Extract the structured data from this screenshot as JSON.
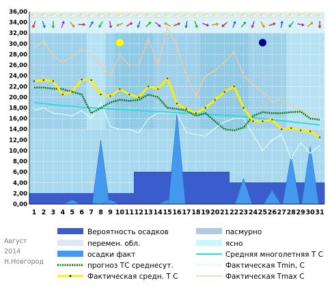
{
  "chart_data": {
    "type": "line",
    "title": "",
    "xlabel": "",
    "ylabel": "",
    "ylim": [
      0,
      36
    ],
    "y_ticks": [
      "0,00",
      "2,00",
      "4,00",
      "6,00",
      "8,00",
      "10,00",
      "12,00",
      "14,00",
      "16,00",
      "18,00",
      "20,00",
      "22,00",
      "24,00",
      "26,00",
      "28,00",
      "30,00",
      "32,00",
      "34,00",
      "36,00"
    ],
    "x": [
      1,
      2,
      3,
      4,
      5,
      6,
      7,
      8,
      9,
      10,
      11,
      12,
      13,
      14,
      15,
      16,
      17,
      18,
      19,
      20,
      21,
      22,
      23,
      24,
      25,
      26,
      27,
      28,
      29,
      30,
      31
    ],
    "grid": true,
    "legend_position": "bottom",
    "side_note": {
      "month": "Август",
      "year": "2014",
      "city": "Н.Новгород"
    },
    "colors": {
      "sky_light": "#d8f2fb",
      "sky_mid": "#a9d9ee",
      "sky_dark": "#88c4e0",
      "precip_probability": "#3a5ccc",
      "precip_actual": "#4499ee",
      "norm": "#22dddd",
      "forecast": "#117711",
      "actual_mean": "#ffee00",
      "tmin": "#d8f8f8",
      "tmax": "#f8c8a0",
      "sun": "#ffff00",
      "moon": "#000088"
    },
    "moon_phases": [
      {
        "day": 10,
        "phase": "full-moon"
      },
      {
        "day": 25,
        "phase": "new-moon"
      }
    ],
    "icon_row": {
      "clouds": "partly-cloudy-icons",
      "wind": "wind-direction-arrows"
    },
    "series": [
      {
        "name": "Вероятность осадков",
        "kind": "step-area",
        "values": [
          2,
          2,
          2,
          2,
          2,
          2,
          2,
          2,
          2,
          2,
          2,
          6,
          6,
          6,
          6,
          6,
          6,
          6,
          6,
          6,
          6,
          4,
          4,
          4,
          4,
          4,
          4,
          4,
          4,
          4,
          4
        ]
      },
      {
        "name": "Фактическая Tmax C",
        "values": [
          29.3,
          30.5,
          27.7,
          26.5,
          27.5,
          29.0,
          28.0,
          26.0,
          24.0,
          27.8,
          26.0,
          26.0,
          31.0,
          26.0,
          33.0,
          29.5,
          24.0,
          20.2,
          24.0,
          25.0,
          26.5,
          28.5,
          24.0,
          22.3,
          21.0,
          19.2,
          19.5,
          18.6,
          17.5,
          17.0,
          17.0
        ]
      },
      {
        "name": "Фактическая Tmin, C",
        "values": [
          17.5,
          18.0,
          17.0,
          16.8,
          16.5,
          17.5,
          16.0,
          19.0,
          14.5,
          14.0,
          14.0,
          13.3,
          16.0,
          17.0,
          17.0,
          17.0,
          13.4,
          13.0,
          12.7,
          14.2,
          15.4,
          16.0,
          16.0,
          13.0,
          10.0,
          12.0,
          13.0,
          8.5,
          11.5,
          9.5,
          11.0
        ]
      },
      {
        "name": "Средняя многолетняя Т С",
        "values": [
          19.0,
          18.8,
          18.6,
          18.4,
          18.3,
          18.1,
          18.0,
          17.9,
          17.8,
          17.7,
          17.6,
          17.5,
          17.4,
          17.3,
          17.2,
          17.1,
          17.0,
          16.9,
          16.8,
          16.7,
          16.6,
          16.5,
          16.4,
          16.2,
          16.0,
          15.8,
          15.6,
          15.4,
          15.2,
          15.0,
          14.8
        ]
      },
      {
        "name": "прогноз ТС среднесут.",
        "values": [
          21.8,
          21.8,
          21.6,
          21.5,
          21.0,
          20.5,
          17.0,
          18.0,
          19.0,
          19.5,
          19.3,
          19.5,
          20.5,
          20.0,
          18.0,
          17.8,
          17.5,
          16.5,
          17.0,
          15.5,
          14.0,
          13.8,
          14.3,
          16.5,
          17.2,
          17.0,
          17.0,
          17.2,
          17.3,
          16.0,
          15.8
        ]
      },
      {
        "name": "Фактическая средн. Т С",
        "values": [
          23.0,
          23.2,
          23.0,
          20.5,
          21.0,
          23.3,
          23.2,
          20.5,
          20.2,
          21.5,
          20.5,
          20.0,
          22.0,
          21.5,
          23.5,
          18.8,
          17.8,
          17.0,
          18.0,
          19.5,
          21.0,
          22.0,
          18.0,
          15.5,
          15.5,
          15.8,
          14.0,
          14.2,
          13.8,
          13.6,
          12.5
        ]
      },
      {
        "name": "осадки факт",
        "kind": "spike-area",
        "values": [
          0,
          0,
          0,
          0,
          0.8,
          0,
          0,
          12.0,
          0.8,
          0,
          0,
          0,
          0,
          0,
          0.8,
          17.0,
          0,
          0,
          0,
          0,
          0,
          0,
          4.8,
          0,
          0,
          2.6,
          0,
          9.0,
          0,
          10.8,
          0
        ]
      }
    ],
    "legend": [
      {
        "key": "precip_probability",
        "label": "Вероятность осадков"
      },
      {
        "key": "overcast",
        "label": "пасмурно"
      },
      {
        "key": "partly_cloudy",
        "label": "перемен. обл."
      },
      {
        "key": "clear",
        "label": "ясно"
      },
      {
        "key": "precip_actual",
        "label": "осадки факт"
      },
      {
        "key": "norm",
        "label": "Средняя многолетняя Т С"
      },
      {
        "key": "forecast",
        "label": "прогноз ТС среднесут."
      },
      {
        "key": "tmin",
        "label": "Фактическая Tmin, C"
      },
      {
        "key": "actual_mean",
        "label": "Фактическая средн. Т С"
      },
      {
        "key": "tmax",
        "label": "Фактическая Tmax C"
      }
    ]
  }
}
